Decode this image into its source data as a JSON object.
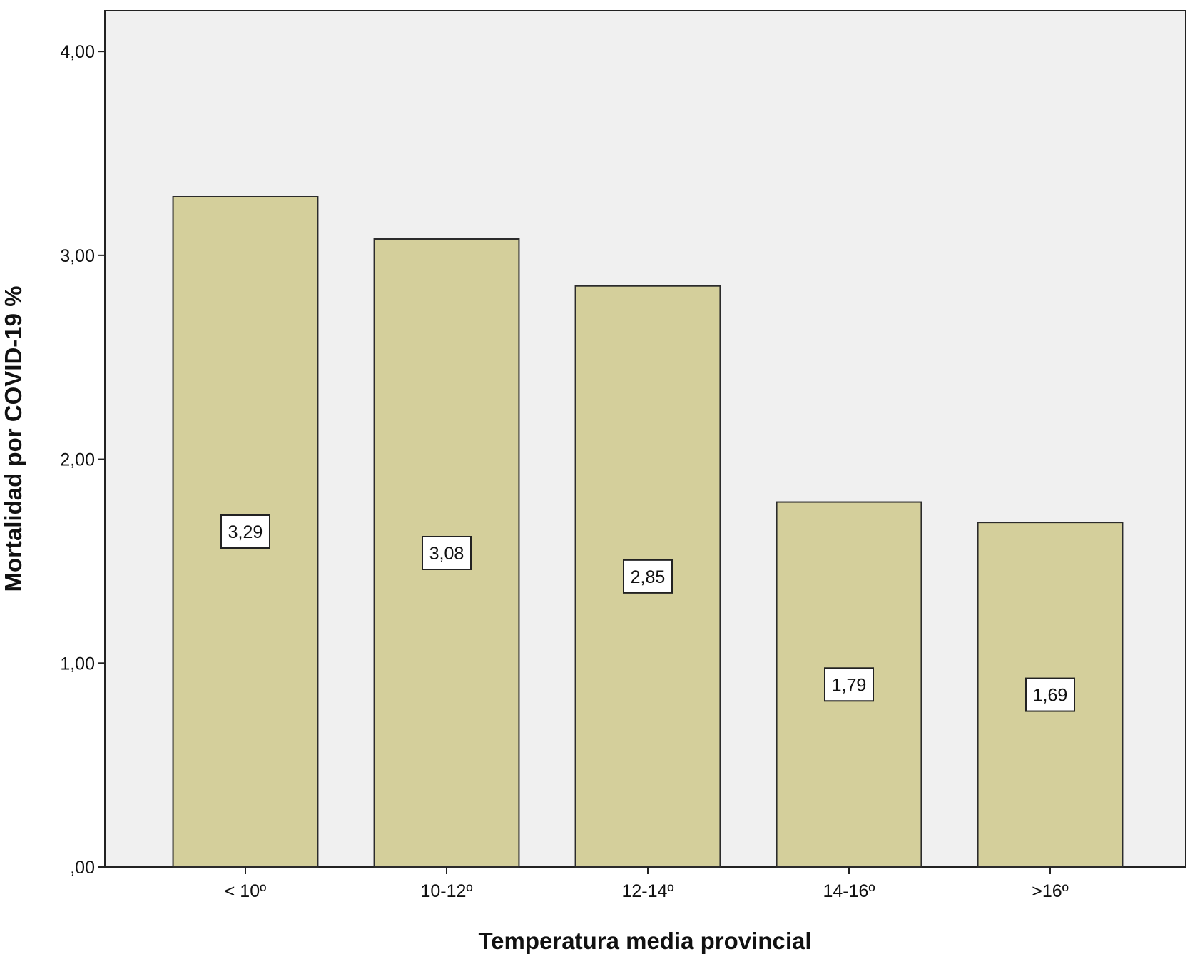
{
  "chart_data": {
    "type": "bar",
    "categories": [
      "< 10º",
      "10-12º",
      "12-14º",
      "14-16º",
      ">16º"
    ],
    "values": [
      3.29,
      3.08,
      2.85,
      1.79,
      1.69
    ],
    "data_labels": [
      "3,29",
      "3,08",
      "2,85",
      "1,79",
      "1,69"
    ],
    "xlabel": "Temperatura media provincial",
    "ylabel": "Mortalidad por COVID-19 %",
    "ylim": [
      0,
      4.2
    ],
    "yticks": [
      0,
      1,
      2,
      3,
      4
    ],
    "ytick_labels": [
      ",00",
      "1,00",
      "2,00",
      "3,00",
      "4,00"
    ],
    "grid": false,
    "colors": {
      "bar_fill": "#d4cf9b",
      "bar_stroke": "#2b2b2b",
      "plot_background": "#f0f0f0",
      "label_box": "#ffffff"
    }
  }
}
